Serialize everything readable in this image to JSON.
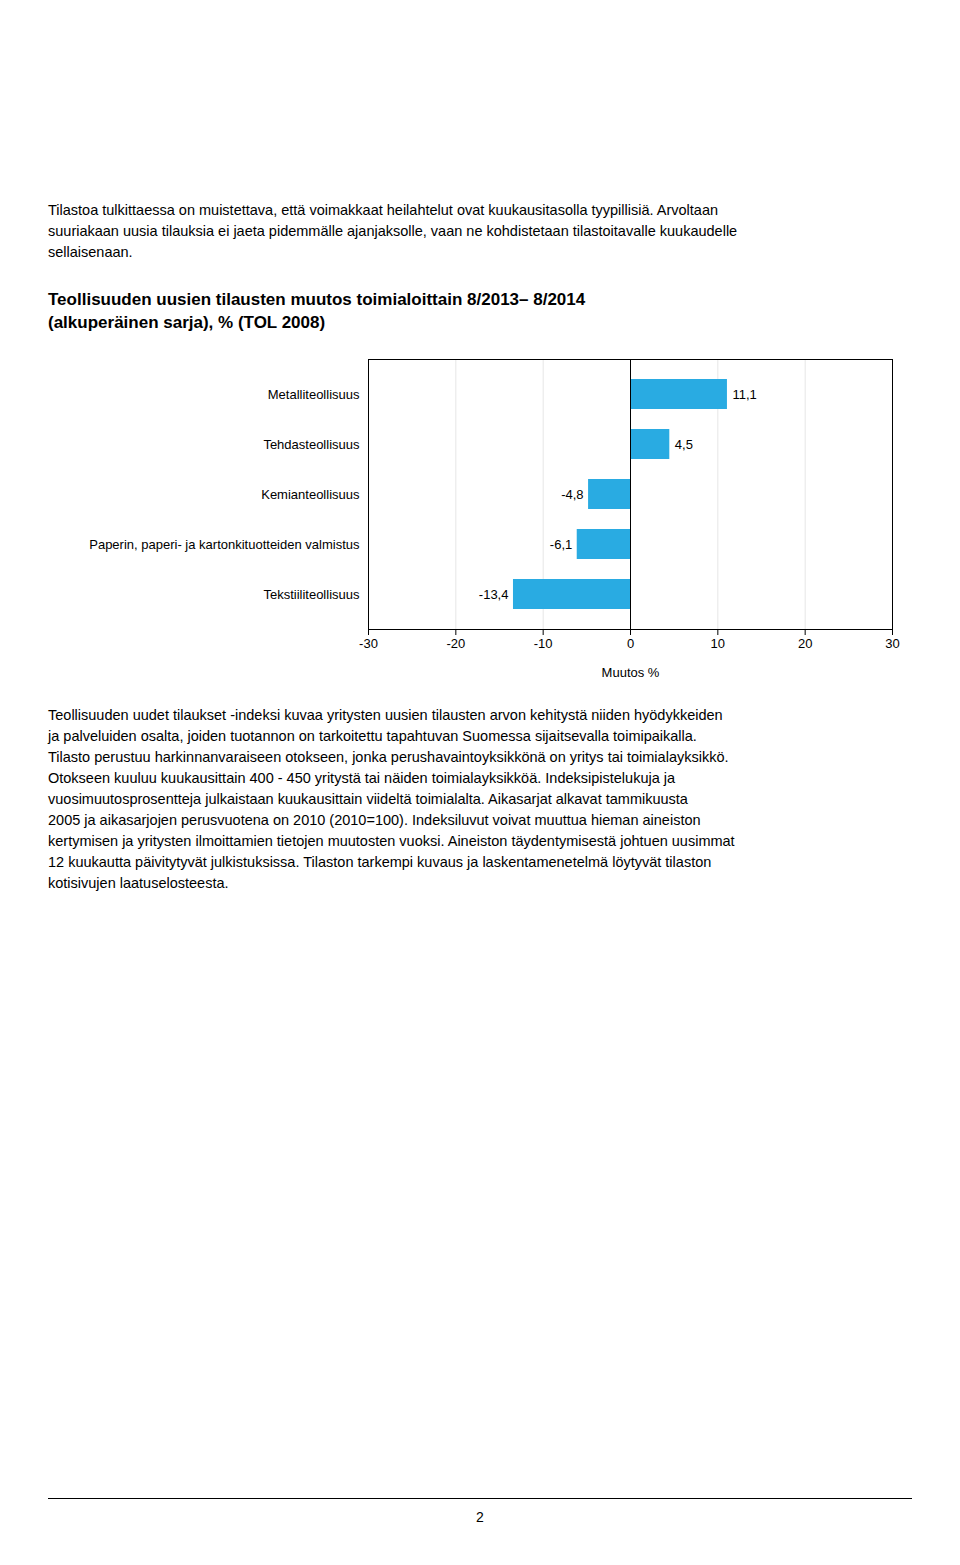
{
  "chart_data": {
    "type": "bar",
    "orientation": "horizontal",
    "title": "Teollisuuden uusien tilausten muutos toimialoittain 8/2013– 8/2014",
    "subtitle": "(alkuperäinen sarja), % (TOL 2008)",
    "categories": [
      "Metalliteollisuus",
      "Tehdasteollisuus",
      "Kemianteollisuus",
      "Paperin, paperi- ja kartonkituotteiden valmistus",
      "Tekstiiliteollisuus"
    ],
    "values": [
      11.1,
      4.5,
      -4.8,
      -6.1,
      -13.4
    ],
    "value_labels": [
      "11,1",
      "4,5",
      "-4,8",
      "-6,1",
      "-13,4"
    ],
    "data_labels": true,
    "color": "#29ABE2",
    "xlabel": "Muutos %",
    "xlim": [
      -30,
      30
    ],
    "xticks": [
      -30,
      -20,
      -10,
      0,
      10,
      20,
      30
    ],
    "grid": true,
    "annotations": [
      "Tilastoa tulkittaessa on muistettava, että voimakkaat heilahtelut ovat kuukausitasolla tyypillisiä. Arvoltaan\nsuuriakaan uusia tilauksia ei jaeta pidemmälle ajanjaksolle, vaan ne kohdistetaan tilastoitavalle kuukaudelle\nsellaisenaan.",
      "Teollisuuden uudet tilaukset -indeksi kuvaa yritysten uusien tilausten arvon kehitystä niiden hyödykkeiden\nja palveluiden osalta, joiden tuotannon on tarkoitettu tapahtuvan Suomessa sijaitsevalla toimipaikalla.\nTilasto perustuu harkinnanvaraiseen otokseen, jonka perushavaintoyksikkönä on yritys tai toimialayksikkö.\nOtokseen kuuluu kuukausittain 400 - 450 yritystä tai näiden toimialayksikköä. Indeksipistelukuja ja\nvuosimuutosprosentteja julkaistaan kuukausittain viideltä toimialalta. Aikasarjat alkavat tammikuusta\n2005 ja aikasarjojen perusvuotena on 2010 (2010=100). Indeksiluvut voivat muuttua hieman aineiston\nkertymisen ja yritysten ilmoittamien tietojen muutosten vuoksi. Aineiston täydentymisestä johtuen uusimmat\n12 kuukautta päivitytyvät julkistuksissa. Tilaston tarkempi kuvaus ja laskentamenetelmä löytyvät tilaston\nkotisivujen laatuselosteesta.",
      "2"
    ]
  }
}
